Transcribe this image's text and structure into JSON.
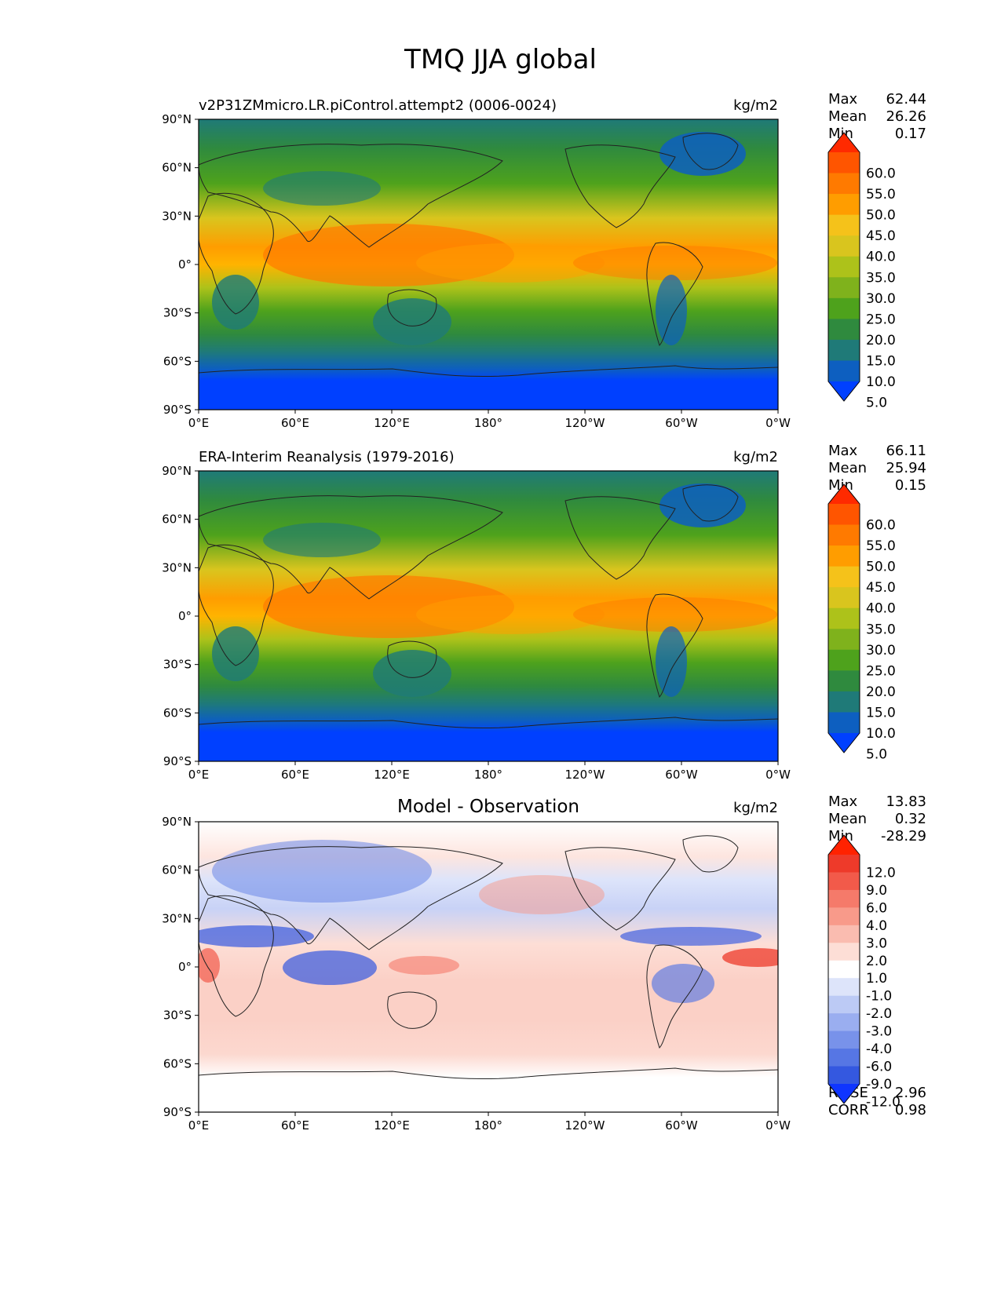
{
  "figure": {
    "title": "TMQ JJA global"
  },
  "chart_data": [
    {
      "type": "heatmap",
      "title_left": "v2P31ZMmicro.LR.piControl.attempt2 (0006-0024)",
      "title_center": "",
      "units": "kg/m2",
      "stats": [
        {
          "label": "Max",
          "value": "62.44"
        },
        {
          "label": "Mean",
          "value": "26.26"
        },
        {
          "label": "Min",
          "value": "0.17"
        }
      ],
      "xticks": [
        "0°E",
        "60°E",
        "120°E",
        "180°",
        "120°W",
        "60°W",
        "0°W"
      ],
      "yticks": [
        "90°N",
        "60°N",
        "30°N",
        "0°",
        "30°S",
        "60°S",
        "90°S"
      ],
      "xlim": [
        0,
        360
      ],
      "ylim": [
        -90,
        90
      ],
      "colorbar": {
        "levels": [
          "60.0",
          "55.0",
          "50.0",
          "45.0",
          "40.0",
          "35.0",
          "30.0",
          "25.0",
          "20.0",
          "15.0",
          "10.0",
          "5.0"
        ],
        "colors": [
          "#ff2a00",
          "#ff5500",
          "#ff7a00",
          "#ff9d00",
          "#f5c21a",
          "#d9c51e",
          "#adc21a",
          "#7fb21c",
          "#4ea21c",
          "#2f8a3e",
          "#1f7a78",
          "#0d5fc0",
          "#0040ff"
        ]
      }
    },
    {
      "type": "heatmap",
      "title_left": "ERA-Interim Reanalysis (1979-2016)",
      "title_center": "",
      "units": "kg/m2",
      "stats": [
        {
          "label": "Max",
          "value": "66.11"
        },
        {
          "label": "Mean",
          "value": "25.94"
        },
        {
          "label": "Min",
          "value": "0.15"
        }
      ],
      "xticks": [
        "0°E",
        "60°E",
        "120°E",
        "180°",
        "120°W",
        "60°W",
        "0°W"
      ],
      "yticks": [
        "90°N",
        "60°N",
        "30°N",
        "0°",
        "30°S",
        "60°S",
        "90°S"
      ],
      "xlim": [
        0,
        360
      ],
      "ylim": [
        -90,
        90
      ],
      "colorbar": {
        "levels": [
          "60.0",
          "55.0",
          "50.0",
          "45.0",
          "40.0",
          "35.0",
          "30.0",
          "25.0",
          "20.0",
          "15.0",
          "10.0",
          "5.0"
        ],
        "colors": [
          "#ff2a00",
          "#ff5500",
          "#ff7a00",
          "#ff9d00",
          "#f5c21a",
          "#d9c51e",
          "#adc21a",
          "#7fb21c",
          "#4ea21c",
          "#2f8a3e",
          "#1f7a78",
          "#0d5fc0",
          "#0040ff"
        ]
      }
    },
    {
      "type": "heatmap",
      "title_left": "",
      "title_center": "Model - Observation",
      "units": "kg/m2",
      "stats": [
        {
          "label": "Max",
          "value": "13.83"
        },
        {
          "label": "Mean",
          "value": "0.32"
        },
        {
          "label": "Min",
          "value": "-28.29"
        }
      ],
      "extra_stats": [
        {
          "label": "RMSE",
          "value": "2.96"
        },
        {
          "label": "CORR",
          "value": "0.98"
        }
      ],
      "xticks": [
        "0°E",
        "60°E",
        "120°E",
        "180°",
        "120°W",
        "60°W",
        "0°W"
      ],
      "yticks": [
        "90°N",
        "60°N",
        "30°N",
        "0°",
        "30°S",
        "60°S",
        "90°S"
      ],
      "xlim": [
        0,
        360
      ],
      "ylim": [
        -90,
        90
      ],
      "colorbar": {
        "levels": [
          "12.0",
          "9.0",
          "6.0",
          "4.0",
          "3.0",
          "2.0",
          "1.0",
          "-1.0",
          "-2.0",
          "-3.0",
          "-4.0",
          "-6.0",
          "-9.0",
          "-12.0"
        ],
        "colors": [
          "#ff2200",
          "#ee3a2a",
          "#f25a4a",
          "#f57a6a",
          "#f89a8a",
          "#fabcb0",
          "#fdded6",
          "#ffffff",
          "#dde4fa",
          "#bccaf5",
          "#9aaef0",
          "#7892ea",
          "#5676e4",
          "#3458e0",
          "#0f35ff"
        ]
      }
    }
  ]
}
